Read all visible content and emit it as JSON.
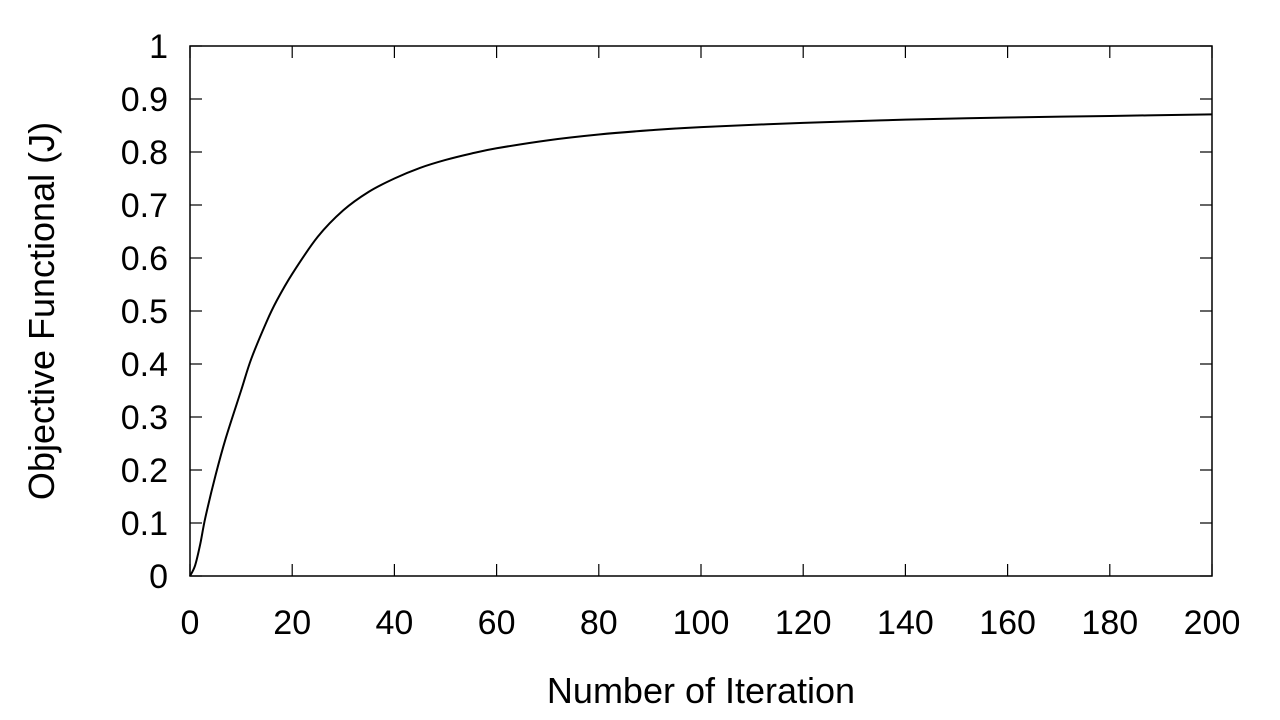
{
  "chart_data": {
    "type": "line",
    "title": "",
    "xlabel": "Number of Iteration",
    "ylabel": "Objective Functional (J)",
    "xlim": [
      0,
      200
    ],
    "ylim": [
      0,
      1
    ],
    "xticks": [
      0,
      20,
      40,
      60,
      80,
      100,
      120,
      140,
      160,
      180,
      200
    ],
    "xtick_labels": [
      "0",
      "20",
      "40",
      "60",
      "80",
      "100",
      "120",
      "140",
      "160",
      "180",
      "200"
    ],
    "yticks": [
      0,
      0.1,
      0.2,
      0.3,
      0.4,
      0.5,
      0.6,
      0.7,
      0.8,
      0.9,
      1
    ],
    "ytick_labels": [
      "0",
      "0.1",
      "0.2",
      "0.3",
      "0.4",
      "0.5",
      "0.6",
      "0.7",
      "0.8",
      "0.9",
      "1"
    ],
    "grid": false,
    "legend": "none",
    "line_color": "#000000",
    "series": [
      {
        "x": [
          0,
          1,
          2,
          3,
          5,
          7,
          10,
          12,
          15,
          17,
          20,
          25,
          30,
          35,
          40,
          45,
          50,
          55,
          60,
          70,
          80,
          90,
          100,
          120,
          140,
          160,
          180,
          200
        ],
        "y": [
          0,
          0.02,
          0.06,
          0.11,
          0.19,
          0.26,
          0.35,
          0.41,
          0.48,
          0.52,
          0.57,
          0.64,
          0.69,
          0.725,
          0.75,
          0.77,
          0.785,
          0.797,
          0.807,
          0.822,
          0.833,
          0.841,
          0.847,
          0.855,
          0.861,
          0.865,
          0.868,
          0.871
        ]
      }
    ]
  }
}
